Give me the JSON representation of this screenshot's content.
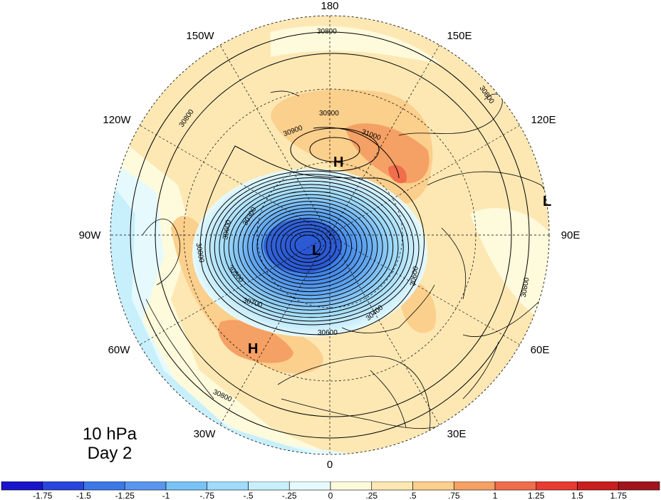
{
  "panel": {
    "level": "10 hPa",
    "day": "Day 2"
  },
  "longitude_labels": [
    "180",
    "150E",
    "120E",
    "90E",
    "60E",
    "30E",
    "0",
    "30W",
    "60W",
    "90W",
    "120W",
    "150W"
  ],
  "pressure_centers": [
    "H",
    "H",
    "L",
    "L"
  ],
  "contour_labels": [
    "30800",
    "30800",
    "30800",
    "30800",
    "30800",
    "30800",
    "30900",
    "30900",
    "31000",
    "30700",
    "30600",
    "30600",
    "30600",
    "30500",
    "30400",
    "30300"
  ],
  "colorbar": {
    "ticks": [
      "-1.75",
      "-1.5",
      "-1.25",
      "-1",
      "-.75",
      "-.5",
      "-.25",
      "0",
      ".25",
      ".5",
      ".75",
      "1",
      "1.25",
      "1.5",
      "1.75"
    ],
    "colors": [
      "#1a14c8",
      "#2846dc",
      "#3c78e6",
      "#5a96f0",
      "#78c3f5",
      "#a0dcfa",
      "#c8f0fc",
      "#e6fafe",
      "#fefadc",
      "#fde8b4",
      "#fbcf8c",
      "#f5a064",
      "#f06e4b",
      "#e63c32",
      "#c81e1e",
      "#a0141e"
    ]
  }
}
